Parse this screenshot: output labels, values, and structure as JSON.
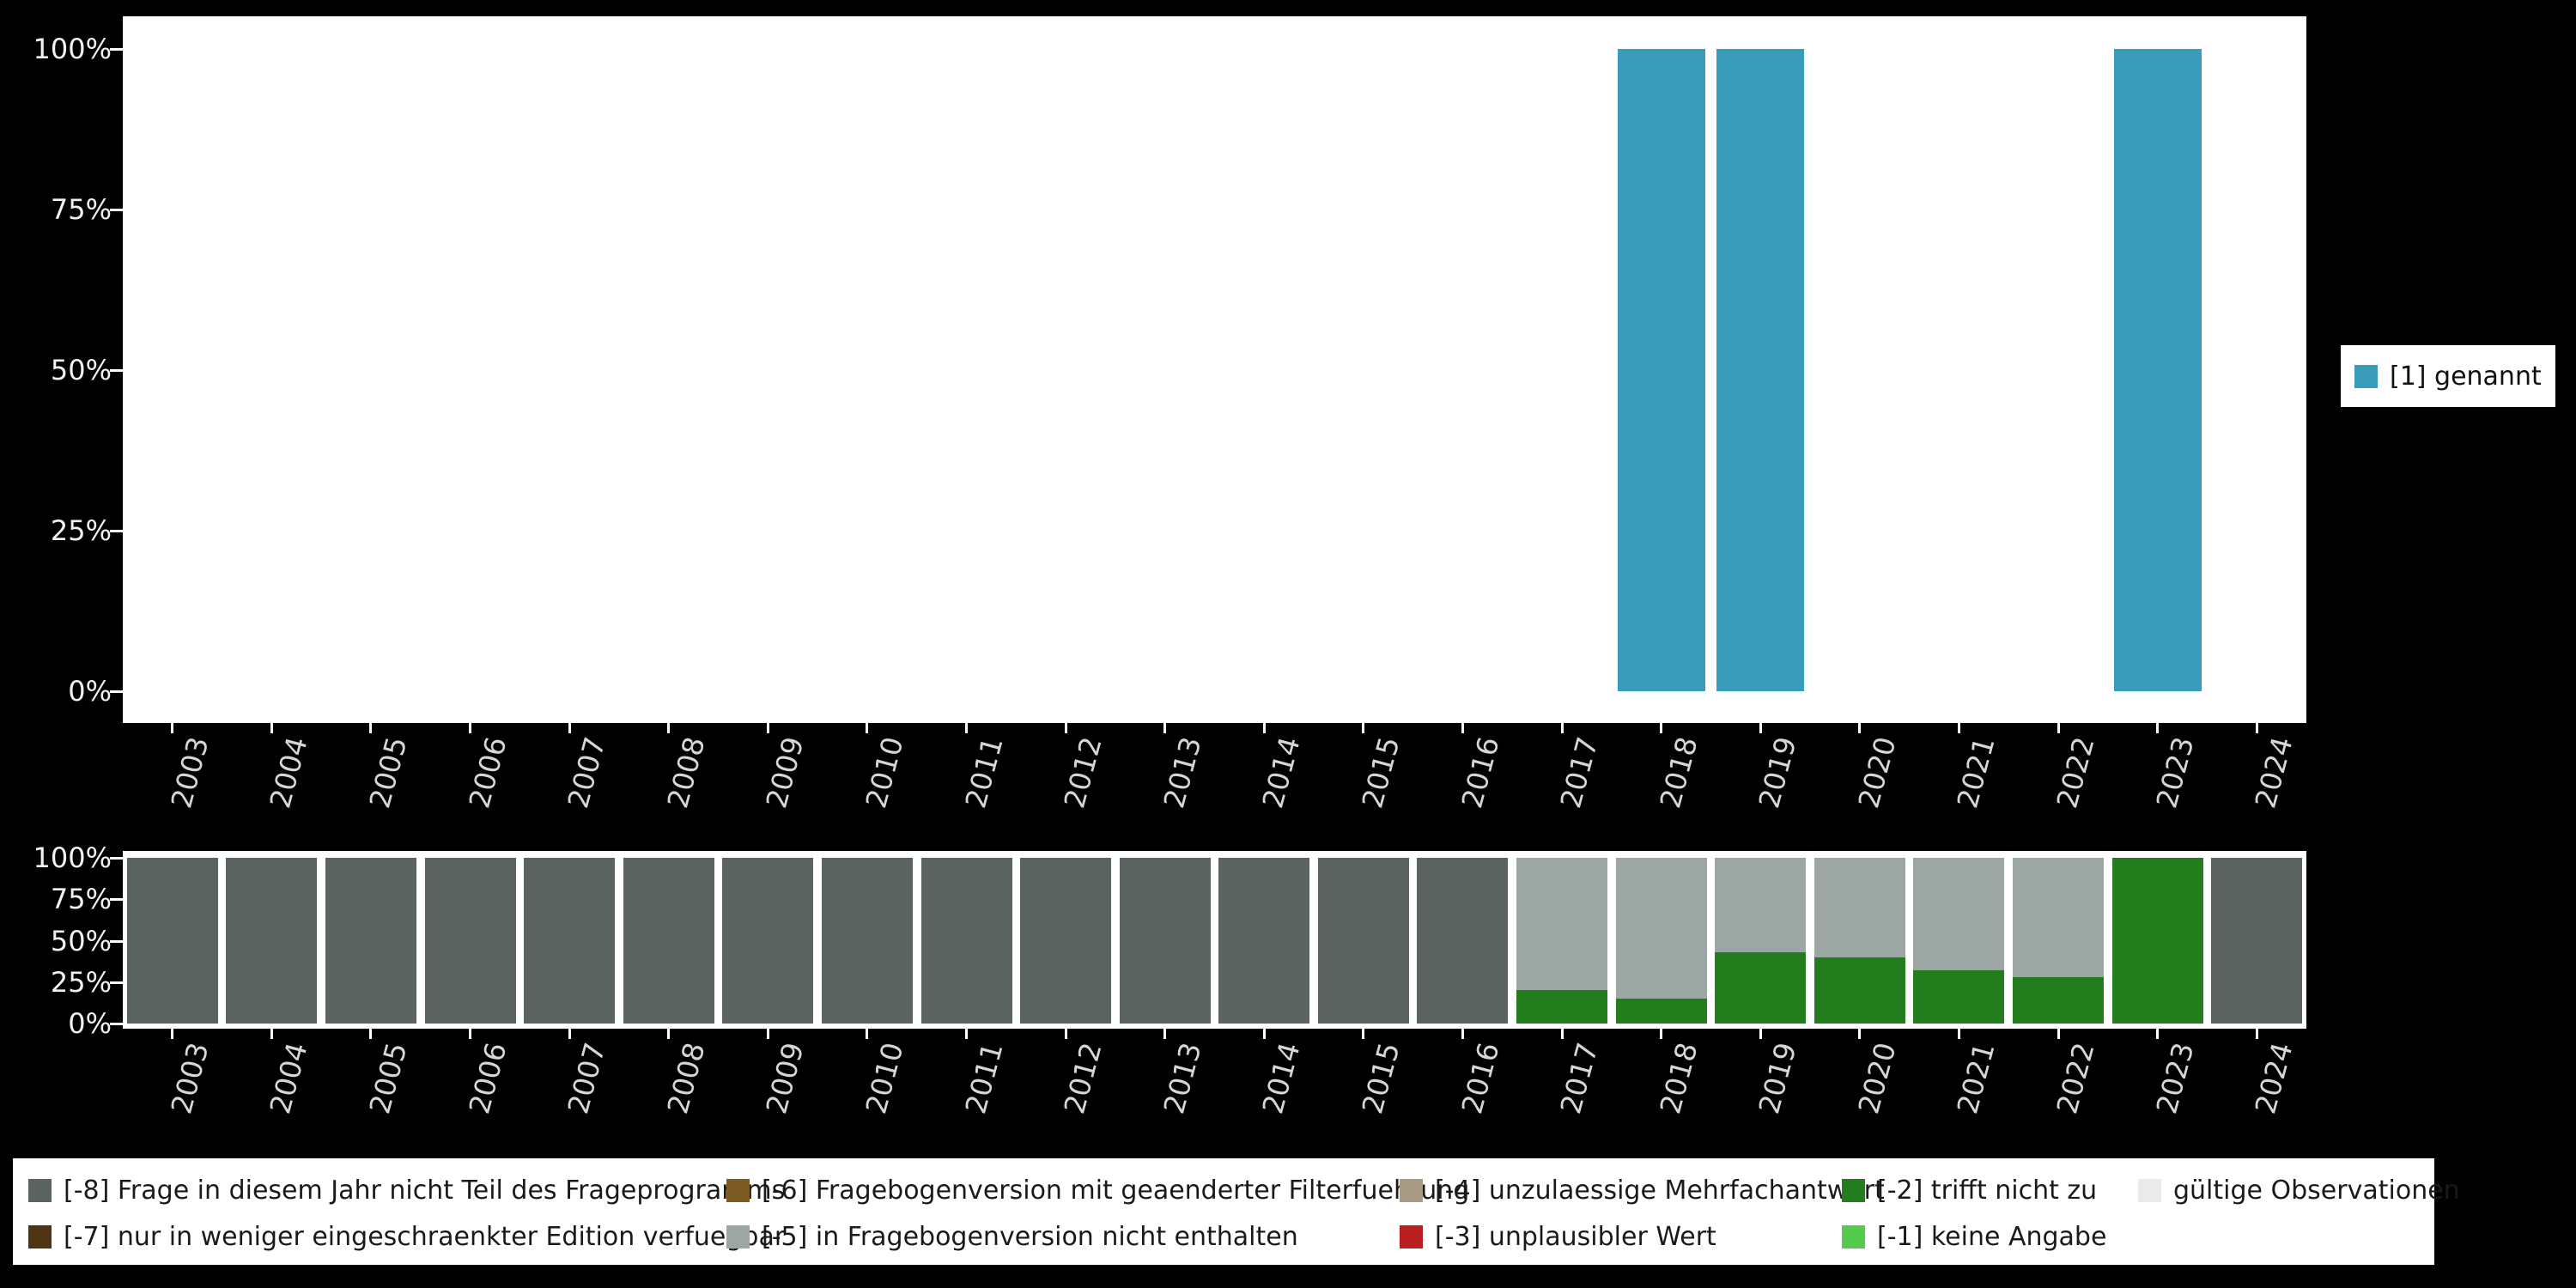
{
  "page": {
    "background": "#000000"
  },
  "axes": {
    "percent_ticks": [
      "100%",
      "75%",
      "50%",
      "25%",
      "0%"
    ],
    "years": [
      "2003",
      "2004",
      "2005",
      "2006",
      "2007",
      "2008",
      "2009",
      "2010",
      "2011",
      "2012",
      "2013",
      "2014",
      "2015",
      "2016",
      "2017",
      "2018",
      "2019",
      "2020",
      "2021",
      "2022",
      "2023",
      "2024"
    ]
  },
  "top_legend": {
    "label": "[1] genannt",
    "color": "#3a9bba"
  },
  "chart_data": [
    {
      "type": "bar",
      "title": "",
      "xlabel": "",
      "ylabel": "",
      "ylim": [
        0,
        100
      ],
      "yticks": [
        "0%",
        "25%",
        "50%",
        "75%",
        "100%"
      ],
      "legend_position": "right",
      "categories": [
        "2003",
        "2004",
        "2005",
        "2006",
        "2007",
        "2008",
        "2009",
        "2010",
        "2011",
        "2012",
        "2013",
        "2014",
        "2015",
        "2016",
        "2017",
        "2018",
        "2019",
        "2020",
        "2021",
        "2022",
        "2023",
        "2024"
      ],
      "series": [
        {
          "name": "[1] genannt",
          "color": "#3a9bba",
          "values": [
            0,
            0,
            0,
            0,
            0,
            0,
            0,
            0,
            0,
            0,
            0,
            0,
            0,
            0,
            0,
            100,
            100,
            0,
            0,
            0,
            100,
            0
          ]
        }
      ]
    },
    {
      "type": "bar",
      "stacked": true,
      "stack_order": "bottom-to-top",
      "title": "",
      "xlabel": "",
      "ylabel": "",
      "ylim": [
        0,
        100
      ],
      "yticks": [
        "0%",
        "25%",
        "50%",
        "75%",
        "100%"
      ],
      "categories": [
        "2003",
        "2004",
        "2005",
        "2006",
        "2007",
        "2008",
        "2009",
        "2010",
        "2011",
        "2012",
        "2013",
        "2014",
        "2015",
        "2016",
        "2017",
        "2018",
        "2019",
        "2020",
        "2021",
        "2022",
        "2023",
        "2024"
      ],
      "series": [
        {
          "name": "[-2] trifft nicht zu",
          "color": "#237d1d",
          "values": [
            0,
            0,
            0,
            0,
            0,
            0,
            0,
            0,
            0,
            0,
            0,
            0,
            0,
            0,
            20,
            15,
            43,
            40,
            32,
            28,
            100,
            0
          ]
        },
        {
          "name": "[-5] in Fragebogenversion nicht enthalten",
          "color": "#9ca6a2",
          "values": [
            0,
            0,
            0,
            0,
            0,
            0,
            0,
            0,
            0,
            0,
            0,
            0,
            0,
            0,
            80,
            85,
            57,
            60,
            68,
            72,
            0,
            0
          ]
        },
        {
          "name": "[-8] Frage in diesem Jahr nicht Teil des Frageprogramms",
          "color": "#5a6360",
          "values": [
            100,
            100,
            100,
            100,
            100,
            100,
            100,
            100,
            100,
            100,
            100,
            100,
            100,
            100,
            0,
            0,
            0,
            0,
            0,
            0,
            0,
            100
          ]
        }
      ]
    }
  ],
  "legend_bottom": {
    "items": [
      {
        "label": "[-8] Frage in diesem Jahr nicht Teil des Frageprogramms",
        "color": "#5a6360"
      },
      {
        "label": "[-6] Fragebogenversion mit geaenderter Filterfuehrung",
        "color": "#7c5c22"
      },
      {
        "label": "[-4] unzulaessige Mehrfachantwort",
        "color": "#a79b86"
      },
      {
        "label": "[-2] trifft nicht zu",
        "color": "#237d1d"
      },
      {
        "label": "gültige Observationen",
        "color": "#eaeaea"
      },
      {
        "label": "[-7] nur in weniger eingeschraenkter Edition verfuegbar",
        "color": "#4f3413"
      },
      {
        "label": "[-5] in Fragebogenversion nicht enthalten",
        "color": "#9ca6a2"
      },
      {
        "label": "[-3] unplausibler Wert",
        "color": "#bb1f1f"
      },
      {
        "label": "[-1] keine Angabe",
        "color": "#55cb4d"
      }
    ]
  }
}
